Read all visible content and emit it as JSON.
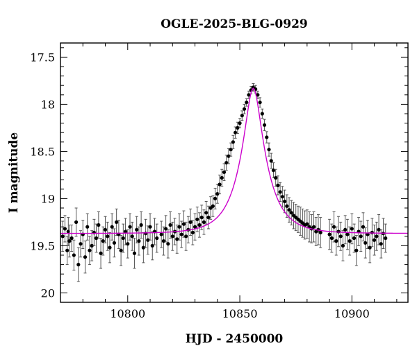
{
  "chart_data": {
    "type": "scatter",
    "title": "OGLE-2025-BLG-0929",
    "xlabel": "HJD - 2450000",
    "ylabel": "I magnitude",
    "xlim": [
      10770,
      10925
    ],
    "ylim": [
      20.1,
      17.35
    ],
    "y_inverted": true,
    "grid": false,
    "colors": {
      "points": "#000000",
      "errorbars": "#555555",
      "model": "#cc00cc",
      "frame": "#000000"
    },
    "x_ticks": {
      "labeled": [
        "10800",
        "10850",
        "10900"
      ],
      "major": [
        10800,
        10850,
        10900
      ],
      "minor_step": 10
    },
    "y_ticks": {
      "labeled": [
        "17.5",
        "18",
        "18.5",
        "19",
        "19.5",
        "20"
      ],
      "major": [
        17.5,
        18,
        18.5,
        19,
        19.5,
        20
      ],
      "minor_step": 0.1
    },
    "model": {
      "name": "",
      "baseline_mag": 19.37,
      "peak_mag": 17.83,
      "t0": 10856,
      "tE": 11.5,
      "u0": 0.29
    },
    "series": [
      {
        "name": "",
        "kind": "data",
        "x": [
          10771.0,
          10772.0,
          10773.0,
          10773.5,
          10774.0,
          10775.0,
          10776.0,
          10777.0,
          10778.0,
          10779.0,
          10780.0,
          10781.0,
          10782.0,
          10783.0,
          10784.0,
          10785.0,
          10786.0,
          10787.0,
          10788.0,
          10789.0,
          10790.0,
          10791.0,
          10792.0,
          10793.0,
          10794.0,
          10795.0,
          10796.0,
          10797.0,
          10798.0,
          10799.0,
          10800.0,
          10801.0,
          10802.0,
          10803.0,
          10804.0,
          10805.0,
          10806.0,
          10807.0,
          10808.0,
          10809.0,
          10810.0,
          10811.0,
          10812.0,
          10813.0,
          10815.0,
          10816.0,
          10817.0,
          10818.0,
          10819.0,
          10820.0,
          10821.0,
          10822.0,
          10823.0,
          10824.0,
          10825.0,
          10826.0,
          10827.0,
          10828.0,
          10829.0,
          10830.0,
          10831.0,
          10832.0,
          10833.0,
          10834.0,
          10835.0,
          10836.0,
          10837.0,
          10838.0,
          10839.0,
          10840.0,
          10841.0,
          10842.0,
          10843.0,
          10844.0,
          10845.0,
          10846.0,
          10847.0,
          10848.0,
          10849.0,
          10850.0,
          10851.0,
          10852.0,
          10853.0,
          10854.0,
          10855.0,
          10856.0,
          10857.0,
          10858.0,
          10859.0,
          10860.0,
          10861.0,
          10862.0,
          10863.0,
          10864.0,
          10865.0,
          10866.0,
          10867.0,
          10868.0,
          10869.0,
          10870.0,
          10871.0,
          10872.0,
          10873.0,
          10874.0,
          10875.0,
          10876.0,
          10877.0,
          10878.0,
          10879.0,
          10880.0,
          10881.0,
          10882.0,
          10883.0,
          10884.0,
          10885.0,
          10886.0,
          10890.0,
          10891.0,
          10892.0,
          10893.0,
          10894.0,
          10895.0,
          10896.0,
          10897.0,
          10898.0,
          10899.0,
          10900.0,
          10901.0,
          10902.0,
          10903.0,
          10904.0,
          10905.0,
          10906.0,
          10907.0,
          10908.0,
          10909.0,
          10910.0,
          10911.0,
          10912.0,
          10913.0,
          10914.0,
          10915.0
        ],
        "y": [
          19.4,
          19.32,
          19.55,
          19.35,
          19.45,
          19.42,
          19.6,
          19.25,
          19.7,
          19.48,
          19.38,
          19.62,
          19.3,
          19.55,
          19.5,
          19.36,
          19.42,
          19.28,
          19.58,
          19.45,
          19.33,
          19.4,
          19.52,
          19.3,
          19.47,
          19.25,
          19.38,
          19.55,
          19.42,
          19.35,
          19.48,
          19.3,
          19.4,
          19.58,
          19.33,
          19.45,
          19.28,
          19.52,
          19.37,
          19.44,
          19.3,
          19.5,
          19.35,
          19.42,
          19.38,
          19.45,
          19.32,
          19.48,
          19.28,
          19.4,
          19.35,
          19.43,
          19.3,
          19.38,
          19.27,
          19.4,
          19.33,
          19.25,
          19.36,
          19.3,
          19.22,
          19.28,
          19.2,
          19.25,
          19.15,
          19.2,
          19.1,
          19.08,
          19.0,
          18.95,
          18.85,
          18.78,
          18.72,
          18.62,
          18.55,
          18.48,
          18.4,
          18.3,
          18.25,
          18.2,
          18.12,
          18.05,
          17.98,
          17.9,
          17.85,
          17.82,
          17.84,
          17.9,
          17.98,
          18.1,
          18.22,
          18.35,
          18.48,
          18.6,
          18.7,
          18.78,
          18.86,
          18.93,
          18.98,
          19.03,
          19.08,
          19.12,
          19.15,
          19.18,
          19.2,
          19.22,
          19.24,
          19.26,
          19.28,
          19.27,
          19.3,
          19.32,
          19.3,
          19.35,
          19.33,
          19.36,
          19.38,
          19.42,
          19.3,
          19.45,
          19.35,
          19.4,
          19.5,
          19.33,
          19.38,
          19.45,
          19.32,
          19.42,
          19.55,
          19.35,
          19.4,
          19.3,
          19.47,
          19.38,
          19.52,
          19.36,
          19.44,
          19.4,
          19.33,
          19.48,
          19.37,
          19.42
        ],
        "yerr": [
          0.16,
          0.14,
          0.15,
          0.15,
          0.17,
          0.14,
          0.16,
          0.15,
          0.18,
          0.14,
          0.15,
          0.17,
          0.14,
          0.15,
          0.16,
          0.14,
          0.15,
          0.14,
          0.16,
          0.15,
          0.14,
          0.15,
          0.16,
          0.14,
          0.15,
          0.14,
          0.15,
          0.16,
          0.15,
          0.14,
          0.15,
          0.14,
          0.15,
          0.16,
          0.14,
          0.15,
          0.14,
          0.16,
          0.15,
          0.15,
          0.14,
          0.15,
          0.14,
          0.15,
          0.14,
          0.15,
          0.14,
          0.15,
          0.14,
          0.15,
          0.14,
          0.15,
          0.14,
          0.14,
          0.14,
          0.15,
          0.14,
          0.14,
          0.13,
          0.14,
          0.13,
          0.13,
          0.13,
          0.13,
          0.12,
          0.12,
          0.12,
          0.11,
          0.11,
          0.1,
          0.1,
          0.09,
          0.09,
          0.08,
          0.08,
          0.07,
          0.07,
          0.06,
          0.06,
          0.05,
          0.05,
          0.05,
          0.04,
          0.04,
          0.04,
          0.04,
          0.04,
          0.04,
          0.05,
          0.05,
          0.06,
          0.06,
          0.07,
          0.08,
          0.08,
          0.09,
          0.1,
          0.1,
          0.11,
          0.12,
          0.12,
          0.13,
          0.13,
          0.14,
          0.14,
          0.14,
          0.15,
          0.15,
          0.15,
          0.15,
          0.16,
          0.15,
          0.16,
          0.15,
          0.16,
          0.16,
          0.16,
          0.15,
          0.16,
          0.15,
          0.16,
          0.15,
          0.16,
          0.15,
          0.16,
          0.15,
          0.16,
          0.15,
          0.16,
          0.15,
          0.16,
          0.15,
          0.16,
          0.15,
          0.16,
          0.15,
          0.16,
          0.15,
          0.16,
          0.15,
          0.16,
          0.15
        ]
      }
    ]
  }
}
